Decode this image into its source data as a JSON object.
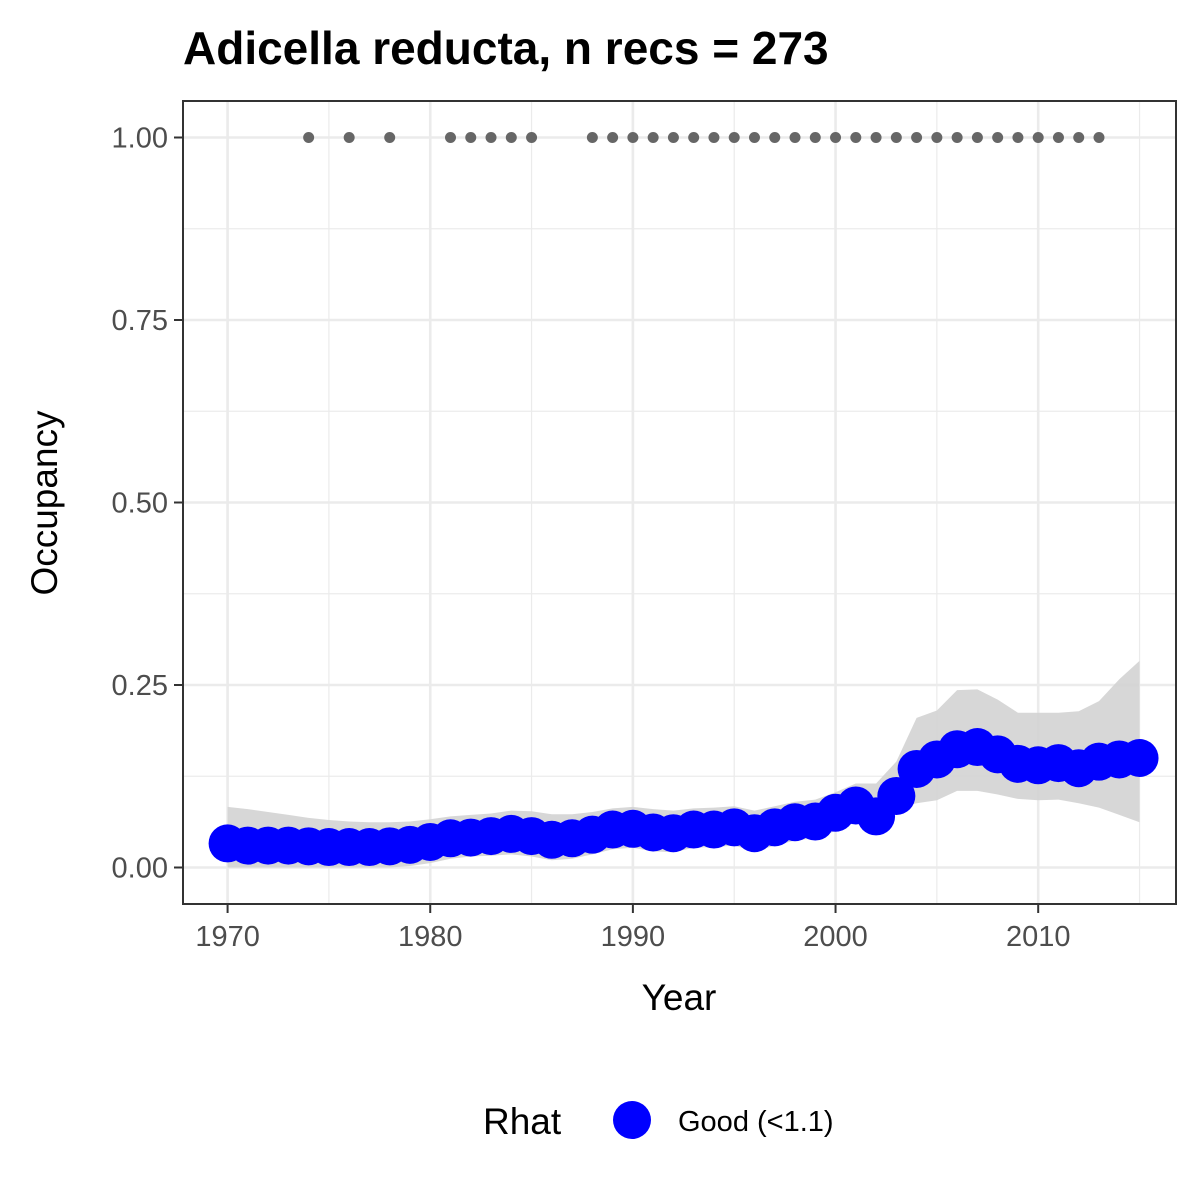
{
  "chart_data": {
    "type": "line",
    "title": "Adicella reducta, n recs = 273",
    "xlabel": "Year",
    "ylabel": "Occupancy",
    "xlim": [
      1967.8,
      2016.8
    ],
    "ylim": [
      -0.05,
      1.05
    ],
    "x_ticks": [
      1970,
      1980,
      1990,
      2000,
      2010
    ],
    "x_tick_labels": [
      "1970",
      "1980",
      "1990",
      "2000",
      "2010"
    ],
    "y_ticks": [
      0,
      0.25,
      0.5,
      0.75,
      1.0
    ],
    "y_tick_labels": [
      "0.00",
      "0.25",
      "0.50",
      "0.75",
      "1.00"
    ],
    "grid": true,
    "legend": {
      "title": "Rhat",
      "position": "bottom",
      "entries": [
        {
          "label": "Good (<1.1)",
          "color": "#0000ff"
        }
      ]
    },
    "colors": {
      "estimate": "#0000ff",
      "ribbon": "#d3d3d3",
      "records": "#666666",
      "grid": "#ebebeb",
      "panel_border": "#333333"
    },
    "series": [
      {
        "name": "Good (<1.1)",
        "x": [
          1970,
          1971,
          1972,
          1973,
          1974,
          1975,
          1976,
          1977,
          1978,
          1979,
          1980,
          1981,
          1982,
          1983,
          1984,
          1985,
          1986,
          1987,
          1988,
          1989,
          1990,
          1991,
          1992,
          1993,
          1994,
          1995,
          1996,
          1997,
          1998,
          1999,
          2000,
          2001,
          2002,
          2003,
          2004,
          2005,
          2006,
          2007,
          2008,
          2009,
          2010,
          2011,
          2012,
          2013,
          2014,
          2015
        ],
        "y": [
          0.033,
          0.03,
          0.03,
          0.03,
          0.029,
          0.028,
          0.028,
          0.028,
          0.029,
          0.031,
          0.035,
          0.04,
          0.041,
          0.043,
          0.046,
          0.043,
          0.038,
          0.04,
          0.045,
          0.052,
          0.053,
          0.048,
          0.047,
          0.052,
          0.052,
          0.055,
          0.047,
          0.055,
          0.062,
          0.063,
          0.075,
          0.085,
          0.07,
          0.098,
          0.135,
          0.148,
          0.162,
          0.165,
          0.155,
          0.142,
          0.14,
          0.143,
          0.136,
          0.145,
          0.148,
          0.15
        ],
        "lower": [
          0.0,
          0.0,
          0.0,
          0.0,
          0.0,
          0.0,
          0.0,
          0.0,
          0.0,
          0.002,
          0.006,
          0.012,
          0.015,
          0.016,
          0.018,
          0.015,
          0.01,
          0.012,
          0.018,
          0.025,
          0.027,
          0.022,
          0.021,
          0.027,
          0.028,
          0.03,
          0.022,
          0.03,
          0.037,
          0.04,
          0.05,
          0.062,
          0.058,
          0.082,
          0.088,
          0.092,
          0.105,
          0.105,
          0.1,
          0.094,
          0.092,
          0.093,
          0.088,
          0.082,
          0.072,
          0.062
        ],
        "upper": [
          0.083,
          0.08,
          0.076,
          0.072,
          0.068,
          0.065,
          0.063,
          0.062,
          0.062,
          0.063,
          0.066,
          0.07,
          0.072,
          0.074,
          0.078,
          0.077,
          0.073,
          0.073,
          0.076,
          0.081,
          0.083,
          0.08,
          0.078,
          0.081,
          0.082,
          0.084,
          0.078,
          0.084,
          0.09,
          0.093,
          0.103,
          0.115,
          0.115,
          0.145,
          0.205,
          0.215,
          0.243,
          0.244,
          0.23,
          0.212,
          0.212,
          0.212,
          0.214,
          0.228,
          0.258,
          0.283
        ]
      }
    ],
    "records": {
      "x": [
        1974,
        1976,
        1978,
        1981,
        1982,
        1983,
        1984,
        1985,
        1988,
        1989,
        1990,
        1991,
        1992,
        1993,
        1994,
        1995,
        1996,
        1997,
        1998,
        1999,
        2000,
        2001,
        2002,
        2003,
        2004,
        2005,
        2006,
        2007,
        2008,
        2009,
        2010,
        2011,
        2012,
        2013
      ],
      "y": 1.0
    }
  }
}
